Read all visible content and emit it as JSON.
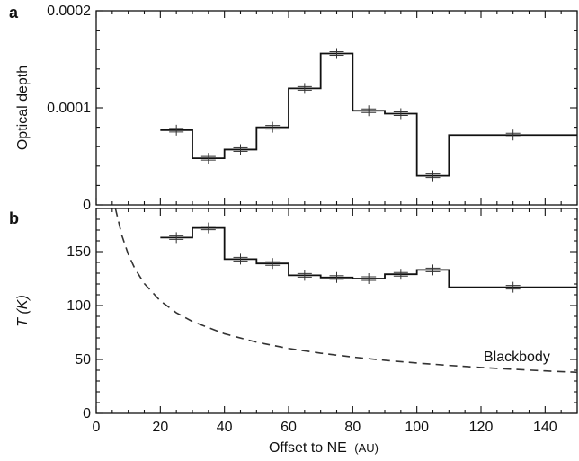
{
  "chart_data": [
    {
      "panel": "a",
      "type": "line",
      "step": true,
      "ylabel": "Optical depth",
      "xlim": [
        0,
        150
      ],
      "ylim": [
        0,
        0.0002
      ],
      "yticks": [
        "0",
        "0.0001",
        "0.0002"
      ],
      "series": [
        {
          "type": "step",
          "x_edges": [
            20,
            30,
            40,
            50,
            60,
            70,
            80,
            90,
            100,
            110,
            150
          ],
          "values": [
            7.7e-05,
            4.8e-05,
            5.7e-05,
            8e-05,
            0.00012,
            0.000156,
            9.7e-05,
            9.4e-05,
            3e-05,
            7.2e-05
          ]
        },
        {
          "type": "scatter",
          "x": [
            25,
            35,
            45,
            55,
            65,
            75,
            85,
            95,
            105,
            130
          ],
          "y": [
            7.7e-05,
            4.8e-05,
            5.7e-05,
            8e-05,
            0.00012,
            0.000156,
            9.7e-05,
            9.4e-05,
            3e-05,
            7.2e-05
          ]
        }
      ]
    },
    {
      "panel": "b",
      "type": "line",
      "step": true,
      "ylabel": "T (K)",
      "xlabel": "Offset to NE",
      "xlabel_unit": "(AU)",
      "xlim": [
        0,
        150
      ],
      "ylim": [
        0,
        190
      ],
      "xticks": [
        "0",
        "20",
        "40",
        "60",
        "80",
        "100",
        "120",
        "140"
      ],
      "yticks": [
        "0",
        "50",
        "100",
        "150"
      ],
      "series": [
        {
          "type": "step",
          "x_edges": [
            20,
            30,
            40,
            50,
            60,
            70,
            80,
            90,
            100,
            110,
            150
          ],
          "values": [
            163,
            172,
            143,
            139,
            128,
            126,
            125,
            129,
            133,
            117
          ]
        },
        {
          "type": "scatter",
          "x": [
            25,
            35,
            45,
            55,
            65,
            75,
            85,
            95,
            105,
            130
          ],
          "y": [
            163,
            172,
            143,
            139,
            128,
            126,
            125,
            129,
            133,
            117
          ]
        },
        {
          "name": "Blackbody",
          "type": "dashed-line",
          "x": [
            6,
            8,
            10,
            12,
            15,
            20,
            25,
            30,
            40,
            50,
            60,
            70,
            80,
            90,
            100,
            110,
            120,
            130,
            140,
            150
          ],
          "y": [
            190,
            165,
            147.5,
            134.6,
            120.4,
            104.3,
            93.3,
            85.2,
            73.8,
            66,
            60.2,
            55.8,
            52.2,
            49.2,
            46.7,
            44.5,
            42.6,
            40.9,
            39.4,
            38.1
          ]
        }
      ]
    }
  ]
}
